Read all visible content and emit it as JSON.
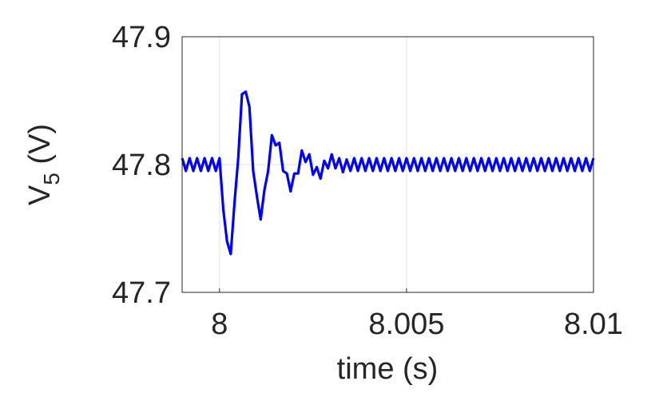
{
  "chart_data": {
    "type": "line",
    "xlabel": "time (s)",
    "ylabel_parts": [
      "V",
      "5",
      " (V)"
    ],
    "xlim": [
      7.999,
      8.01
    ],
    "xticks": [
      8,
      8.005,
      8.01
    ],
    "ylim": [
      47.7,
      47.9
    ],
    "yticks": [
      47.7,
      47.8,
      47.9
    ],
    "grid": true,
    "series": [
      {
        "color": "#0000ff",
        "x": [
          7.999,
          7.9991,
          7.9992,
          7.9993,
          7.9994,
          7.9995,
          7.9996,
          7.9997,
          7.9998,
          7.9999,
          8,
          8.0001,
          8.0002,
          8.0003,
          8.0004,
          8.0005,
          8.0006,
          8.0007,
          8.0008,
          8.0009,
          8.001,
          8.0011,
          8.0012,
          8.0013,
          8.0014,
          8.0015,
          8.0016,
          8.0017,
          8.0018,
          8.0019,
          8.002,
          8.0021,
          8.0022,
          8.0023,
          8.0024,
          8.0025,
          8.0026,
          8.0027,
          8.0028,
          8.0029,
          8.003,
          8.0031,
          8.0032,
          8.0033,
          8.0034,
          8.0035,
          8.0036,
          8.0037,
          8.0038,
          8.0039,
          8.004,
          8.0041,
          8.0042,
          8.0043,
          8.0044,
          8.0045,
          8.0046,
          8.0047,
          8.0048,
          8.0049,
          8.005,
          8.0051,
          8.0052,
          8.0053,
          8.0054,
          8.0055,
          8.0056,
          8.0057,
          8.0058,
          8.0059,
          8.006,
          8.0061,
          8.0062,
          8.0063,
          8.0064,
          8.0065,
          8.0066,
          8.0067,
          8.0068,
          8.0069,
          8.007,
          8.0071,
          8.0072,
          8.0073,
          8.0074,
          8.0075,
          8.0076,
          8.0077,
          8.0078,
          8.0079,
          8.008,
          8.0081,
          8.0082,
          8.0083,
          8.0084,
          8.0085,
          8.0086,
          8.0087,
          8.0088,
          8.0089,
          8.009,
          8.0091,
          8.0092,
          8.0093,
          8.0094,
          8.0095,
          8.0096,
          8.0097,
          8.0098,
          8.0099,
          8.01
        ],
        "values": [
          47.805,
          47.795,
          47.805,
          47.795,
          47.805,
          47.795,
          47.805,
          47.795,
          47.805,
          47.795,
          47.805,
          47.765,
          47.74,
          47.73,
          47.77,
          47.805,
          47.855,
          47.857,
          47.845,
          47.795,
          47.775,
          47.757,
          47.78,
          47.795,
          47.823,
          47.815,
          47.817,
          47.795,
          47.793,
          47.779,
          47.793,
          47.793,
          47.811,
          47.802,
          47.808,
          47.792,
          47.798,
          47.789,
          47.803,
          47.797,
          47.808,
          47.797,
          47.805,
          47.794,
          47.804,
          47.795,
          47.805,
          47.795,
          47.805,
          47.795,
          47.805,
          47.795,
          47.805,
          47.795,
          47.805,
          47.795,
          47.805,
          47.795,
          47.805,
          47.795,
          47.805,
          47.795,
          47.805,
          47.795,
          47.805,
          47.795,
          47.805,
          47.795,
          47.805,
          47.795,
          47.805,
          47.795,
          47.805,
          47.795,
          47.805,
          47.795,
          47.805,
          47.795,
          47.805,
          47.795,
          47.805,
          47.795,
          47.805,
          47.795,
          47.805,
          47.795,
          47.805,
          47.795,
          47.805,
          47.795,
          47.805,
          47.795,
          47.805,
          47.795,
          47.805,
          47.795,
          47.805,
          47.795,
          47.805,
          47.795,
          47.805,
          47.795,
          47.805,
          47.795,
          47.805,
          47.795,
          47.805,
          47.795,
          47.805,
          47.795,
          47.805
        ]
      }
    ]
  }
}
